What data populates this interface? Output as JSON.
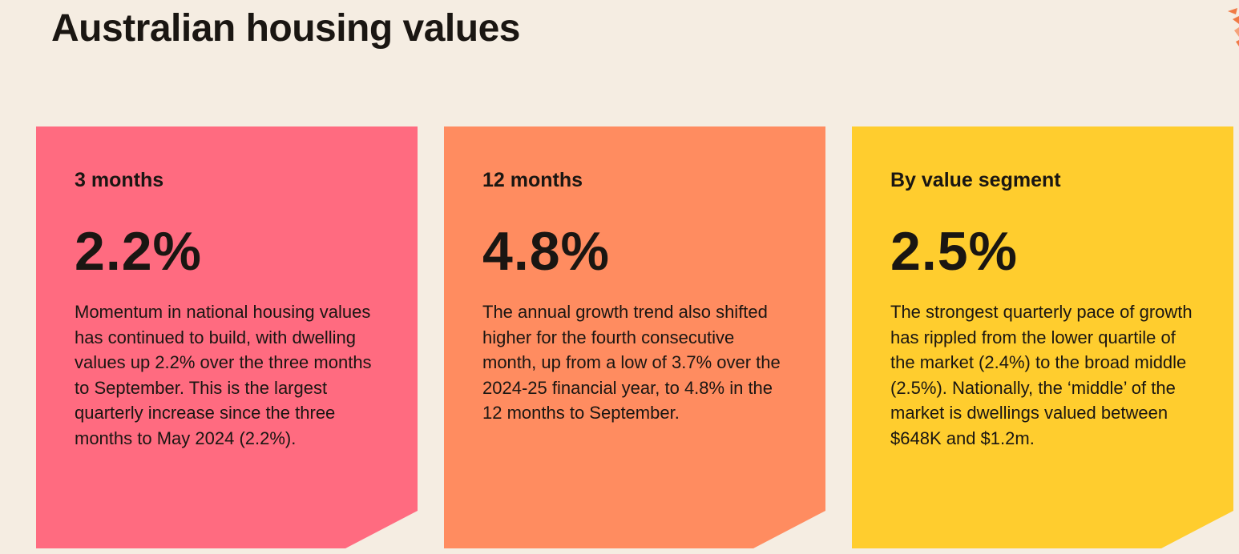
{
  "page": {
    "title": "Australian housing values"
  },
  "colors": {
    "background": "#F5EDE2",
    "card_1": "#FF6B80",
    "card_2": "#FF8C60",
    "card_3": "#FFCD2E",
    "accent_deco": "#F07A45"
  },
  "cards": [
    {
      "label": "3 months",
      "value": "2.2%",
      "body": "Momentum in national housing values has continued to build, with dwelling values up 2.2% over the three months to September. This is the largest quarterly increase since the three months to May 2024 (2.2%)."
    },
    {
      "label": "12 months",
      "value": "4.8%",
      "body": "The annual growth trend also shifted higher for the fourth consecutive month, up from a low of 3.7% over the 2024-25 financial year, to 4.8% in the 12 months to September."
    },
    {
      "label": "By value segment",
      "value": "2.5%",
      "body": "The strongest quarterly pace of growth has rippled from the lower quartile of the market (2.4%) to the broad middle (2.5%). Nationally, the ‘middle’ of the market is dwellings valued between $648K and $1.2m."
    }
  ]
}
